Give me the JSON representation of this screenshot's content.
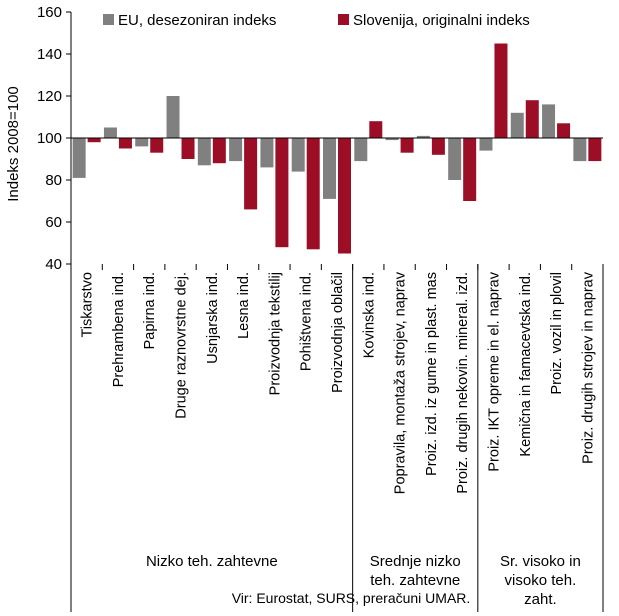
{
  "chart_data": {
    "type": "bar",
    "ylabel": "Indeks 2008=100",
    "ylim": [
      40,
      160
    ],
    "yticks": [
      40,
      60,
      80,
      100,
      120,
      140,
      160
    ],
    "baseline": 100,
    "legend_position": "top",
    "categories": [
      "Tiskarstvo",
      "Prehrambena ind.",
      "Papirna ind.",
      "Druge raznovrstne dej.",
      "Usnjarska ind.",
      "Lesna ind.",
      "Proizvodnja tekstilij",
      "Pohištvena ind.",
      "Proizvodnja oblačil",
      "Kovinska ind.",
      "Popravila, montaža strojev, naprav",
      "Proiz. izd. iz gume in plast. mas",
      "Proiz. drugih nekovin. mineral. izd.",
      "Proiz. IKT opreme in el. naprav",
      "Kemična in famacevtska ind.",
      "Proiz. vozil in plovil",
      "Proiz. drugih strojev in naprav"
    ],
    "series": [
      {
        "name": "EU, desezoniran indeks",
        "color": "#808080",
        "values": [
          81,
          105,
          96,
          120,
          87,
          89,
          86,
          84,
          71,
          89,
          99,
          101,
          80,
          94,
          112,
          116,
          89
        ]
      },
      {
        "name": "Slovenija, originalni indeks",
        "color": "#9b0e26",
        "values": [
          98,
          95,
          93,
          90,
          88,
          66,
          48,
          47,
          45,
          108,
          93,
          92,
          70,
          145,
          118,
          107,
          89
        ]
      }
    ],
    "groups": [
      {
        "label_lines": [
          "Nizko teh. zahtevne"
        ],
        "count": 9
      },
      {
        "label_lines": [
          "Srednje nizko",
          "teh. zahtevne"
        ],
        "count": 4
      },
      {
        "label_lines": [
          "Sr. visoko in",
          "visoko teh.",
          "zaht."
        ],
        "count": 4
      }
    ]
  },
  "source_note": "Vir: Eurostat, SURS, preračuni UMAR."
}
